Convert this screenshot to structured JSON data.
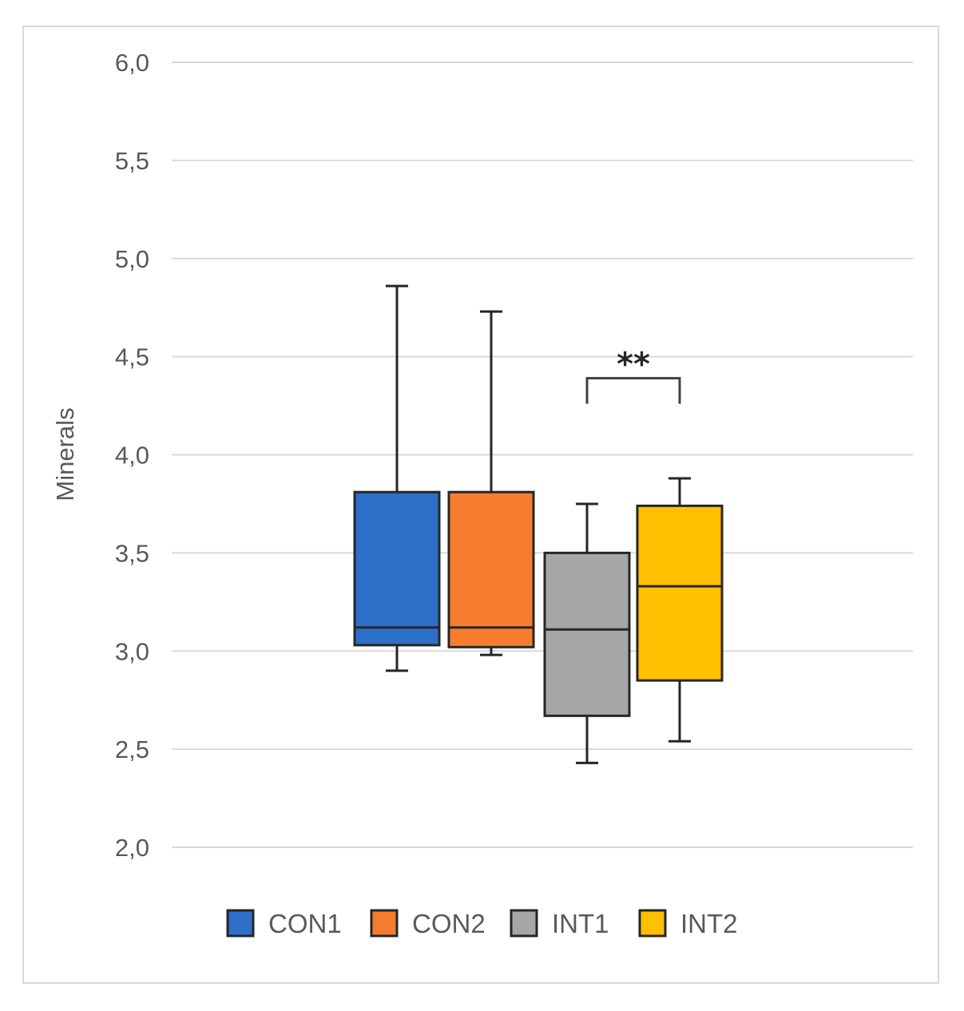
{
  "chart_data": {
    "type": "box",
    "ylabel": "Minerals",
    "xlabel": "",
    "title": "",
    "ylim": [
      2.0,
      6.0
    ],
    "y_ticks": [
      "2,0",
      "2,5",
      "3,0",
      "3,5",
      "4,0",
      "4,5",
      "5,0",
      "5,5",
      "6,0"
    ],
    "y_tick_values": [
      2.0,
      2.5,
      3.0,
      3.5,
      4.0,
      4.5,
      5.0,
      5.5,
      6.0
    ],
    "grid": true,
    "legend_position": "bottom",
    "series": [
      {
        "name": "CON1",
        "color": "#2e6fca",
        "min": 2.9,
        "q1": 3.03,
        "median": 3.12,
        "q3": 3.81,
        "max": 4.86
      },
      {
        "name": "CON2",
        "color": "#f77d2e",
        "min": 2.98,
        "q1": 3.02,
        "median": 3.12,
        "q3": 3.81,
        "max": 4.73
      },
      {
        "name": "INT1",
        "color": "#a6a6a6",
        "min": 2.43,
        "q1": 2.67,
        "median": 3.11,
        "q3": 3.5,
        "max": 3.75
      },
      {
        "name": "INT2",
        "color": "#ffc000",
        "min": 2.54,
        "q1": 2.85,
        "median": 3.33,
        "q3": 3.74,
        "max": 3.88
      }
    ],
    "annotations": [
      {
        "text": "**",
        "between": [
          "INT1",
          "INT2"
        ]
      }
    ]
  }
}
